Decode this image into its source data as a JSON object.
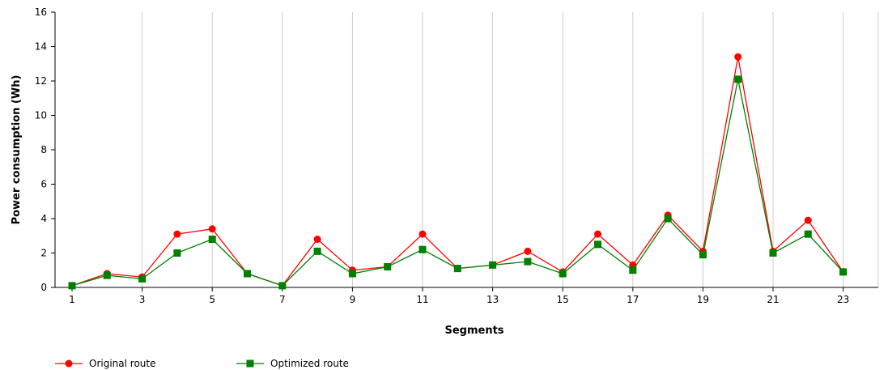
{
  "chart_data": {
    "type": "line",
    "title": "",
    "xlabel": "Segments",
    "ylabel": "Power consumption (Wh)",
    "ylim": [
      0,
      16
    ],
    "yticks": [
      0,
      2,
      4,
      6,
      8,
      10,
      12,
      14,
      16
    ],
    "xlim": [
      1,
      24
    ],
    "xticks": [
      1,
      3,
      5,
      7,
      9,
      11,
      13,
      15,
      17,
      19,
      21,
      23
    ],
    "grid": "vertical",
    "legend_position": "bottom-left",
    "x": [
      1,
      2,
      3,
      4,
      5,
      6,
      7,
      8,
      9,
      10,
      11,
      12,
      13,
      14,
      15,
      16,
      17,
      18,
      19,
      20,
      21,
      22,
      23
    ],
    "series": [
      {
        "name": "Original route",
        "color": "#ff0000",
        "marker": "circle",
        "values": [
          0.1,
          0.8,
          0.6,
          3.1,
          3.4,
          0.8,
          0.1,
          2.8,
          1.0,
          1.2,
          3.1,
          1.1,
          1.3,
          2.1,
          0.9,
          3.1,
          1.3,
          4.2,
          2.1,
          13.4,
          2.1,
          3.9,
          0.9
        ]
      },
      {
        "name": "Optimized route",
        "color": "#008000",
        "marker": "square",
        "values": [
          0.1,
          0.7,
          0.5,
          2.0,
          2.8,
          0.8,
          0.1,
          2.1,
          0.8,
          1.2,
          2.2,
          1.1,
          1.3,
          1.5,
          0.8,
          2.5,
          1.0,
          4.0,
          1.9,
          12.1,
          2.0,
          3.1,
          0.9
        ]
      }
    ]
  }
}
